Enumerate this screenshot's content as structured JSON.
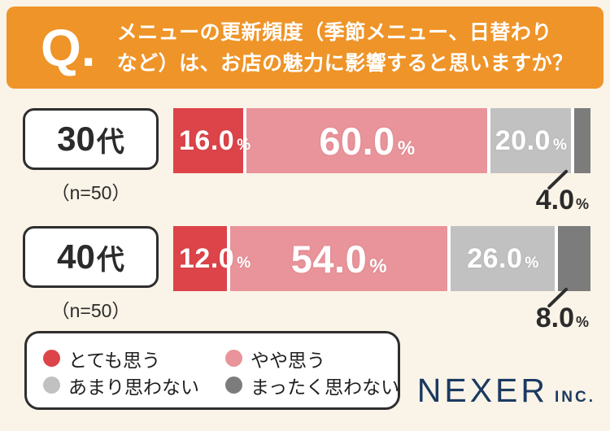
{
  "page": {
    "background_color": "#FAF3E7"
  },
  "header": {
    "q_label": "Q.",
    "title_line1": "メニューの更新頻度（季節メニュー、日替わり",
    "title_line2": "など）は、お店の魅力に影響すると思いますか？",
    "background_color": "#EF9428",
    "text_color": "#FFFFFF"
  },
  "chart_data": {
    "type": "bar",
    "subtype": "horizontal-stacked",
    "unit": "%",
    "value_suffix": "%",
    "xlim": [
      0,
      100
    ],
    "big_label_threshold": 40,
    "outside_label_index": 3,
    "legend_position": "bottom-left",
    "series": [
      {
        "key": "totemo-omou",
        "name": "とても思う",
        "color": "#DC4449",
        "values": [
          16.0,
          12.0
        ]
      },
      {
        "key": "yaya-omou",
        "name": "やや思う",
        "color": "#E9939A",
        "values": [
          60.0,
          54.0
        ]
      },
      {
        "key": "amari-omowanai",
        "name": "あまり思わない",
        "color": "#C1C1C1",
        "values": [
          20.0,
          26.0
        ]
      },
      {
        "key": "mattaku-omowanai",
        "name": "まったく思わない",
        "color": "#7C7C7C",
        "values": [
          4.0,
          8.0
        ]
      }
    ],
    "groups": [
      {
        "number": "30",
        "suffix": "代",
        "sample": "（n=50）",
        "values": [
          16.0,
          60.0,
          20.0,
          4.0
        ]
      },
      {
        "number": "40",
        "suffix": "代",
        "sample": "（n=50）",
        "values": [
          12.0,
          54.0,
          26.0,
          8.0
        ]
      }
    ]
  },
  "footer": {
    "logo_text": "NEXER",
    "logo_suffix": "INC.",
    "logo_color": "#1B3A61"
  }
}
